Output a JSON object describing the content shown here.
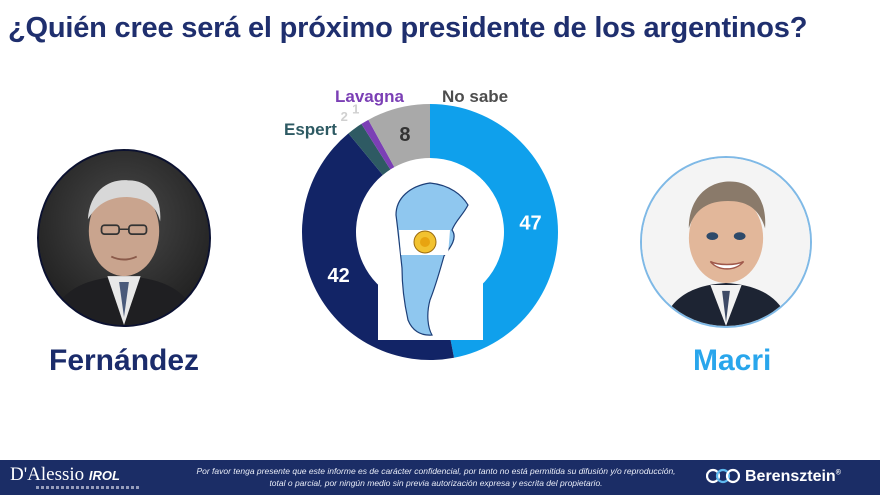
{
  "title": "¿Quién cree será el próximo presidente de los argentinos?",
  "candidates": {
    "left": {
      "name": "Fernández",
      "color": "#1b2c6b"
    },
    "right": {
      "name": "Macri",
      "color": "#29a6ec"
    }
  },
  "chart_data": {
    "type": "pie",
    "title": "¿Quién cree será el próximo presidente de los argentinos?",
    "labels": [
      "Macri",
      "Fernández",
      "Espert",
      "Lavagna",
      "No sabe"
    ],
    "values": [
      47,
      42,
      2,
      1,
      8
    ],
    "colors": [
      "#0fa0ec",
      "#122466",
      "#2e5a63",
      "#7b3fb5",
      "#a9a9a9"
    ],
    "data_labels": [
      "47",
      "42",
      "2",
      "1",
      "8"
    ],
    "legend": [
      "Espert",
      "Lavagna",
      "No sabe"
    ],
    "legend_colors": [
      "#2e5a63",
      "#7b3fb5",
      "#4d4d4d"
    ],
    "donut": true
  },
  "footer": {
    "brand_left": "D'Alessio",
    "brand_left_suffix": "IROL",
    "disclaimer": "Por favor tenga presente que este informe es de carácter confidencial, por tanto no está permitida su difusión y/o reproducción, total o parcial, por ningún medio sin previa autorización expresa y escrita del propietario.",
    "brand_right": "Berensztein",
    "brand_right_mark": "®"
  }
}
